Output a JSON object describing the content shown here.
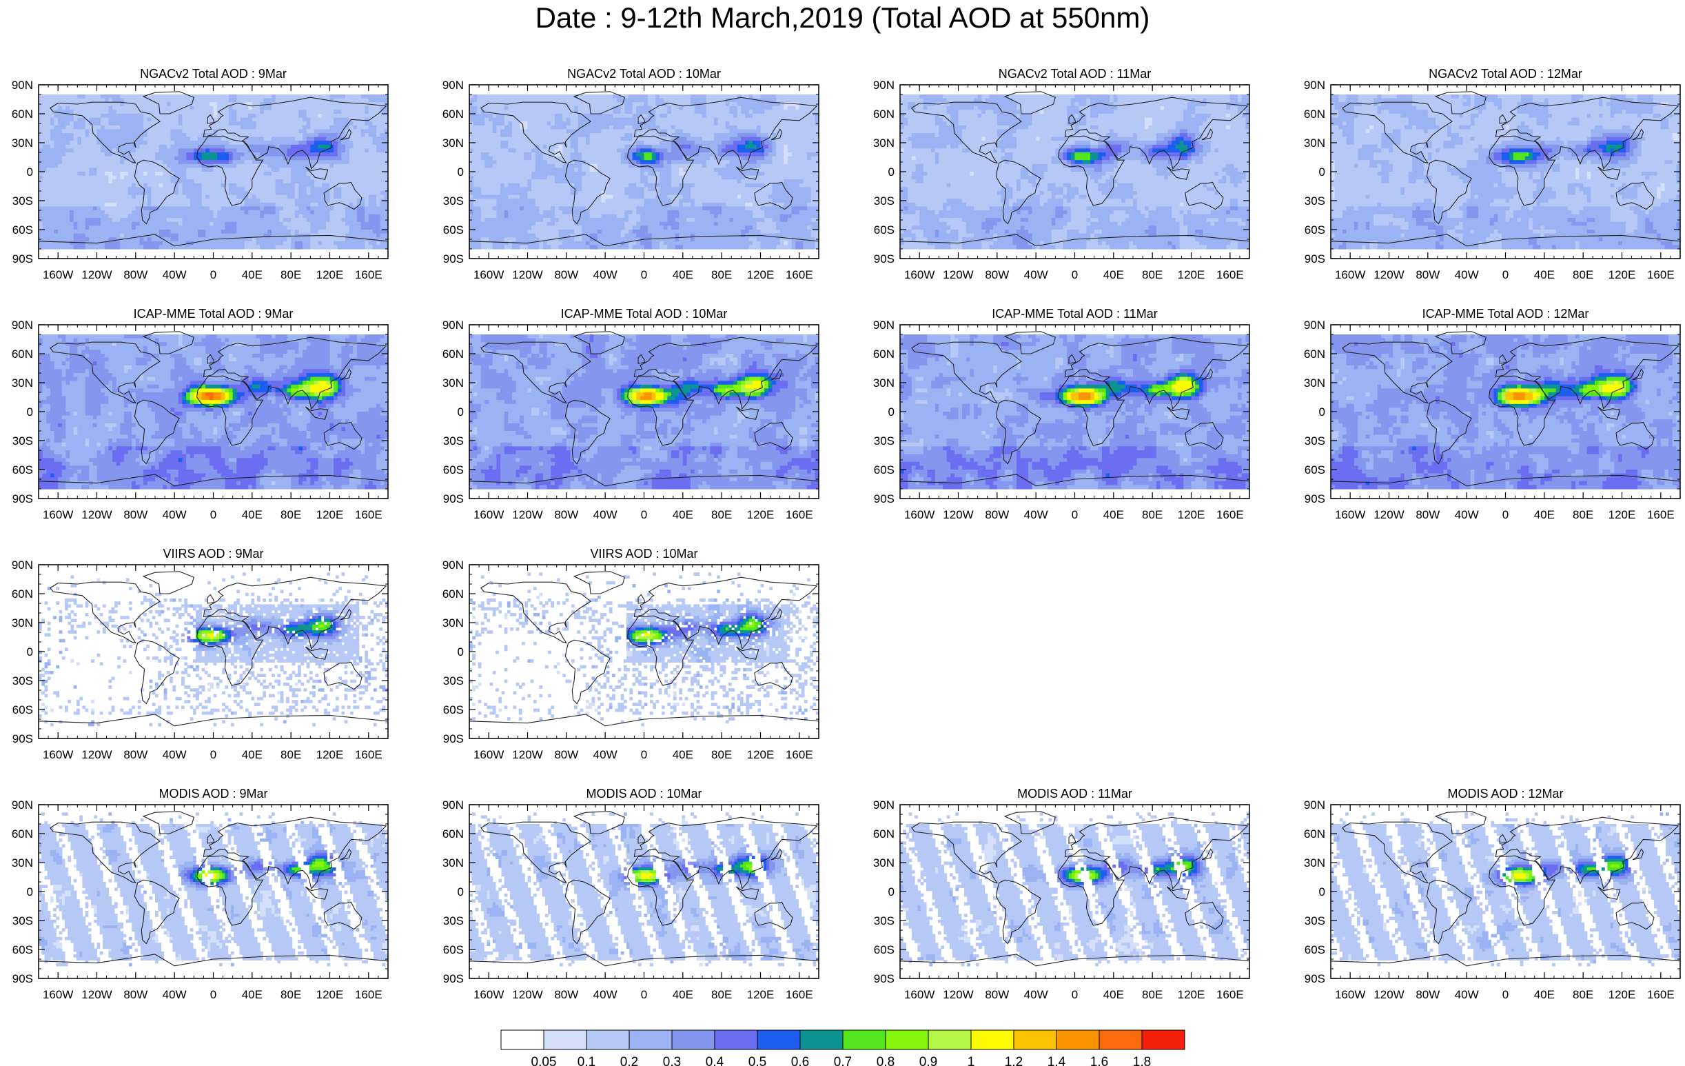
{
  "figure": {
    "title": "Date : 9-12th March,2019 (Total AOD at 550nm)"
  },
  "axes": {
    "lat_labels": [
      "90N",
      "60N",
      "30N",
      "0",
      "30S",
      "60S",
      "90S"
    ],
    "lon_labels": [
      "160W",
      "120W",
      "80W",
      "40W",
      "0",
      "40E",
      "80E",
      "120E",
      "160E"
    ],
    "lat_values": [
      90,
      60,
      30,
      0,
      -30,
      -60,
      -90
    ],
    "lon_values": [
      -160,
      -120,
      -80,
      -40,
      0,
      40,
      80,
      120,
      160
    ]
  },
  "panels": [
    {
      "title": "NGACv2 Total AOD : 9Mar",
      "model": "NGACv2",
      "day": 9,
      "row": 0,
      "col": 0
    },
    {
      "title": "NGACv2 Total AOD : 10Mar",
      "model": "NGACv2",
      "day": 10,
      "row": 0,
      "col": 1
    },
    {
      "title": "NGACv2 Total AOD : 11Mar",
      "model": "NGACv2",
      "day": 11,
      "row": 0,
      "col": 2
    },
    {
      "title": "NGACv2 Total AOD : 12Mar",
      "model": "NGACv2",
      "day": 12,
      "row": 0,
      "col": 3
    },
    {
      "title": "ICAP-MME Total AOD : 9Mar",
      "model": "ICAP-MME",
      "day": 9,
      "row": 1,
      "col": 0
    },
    {
      "title": "ICAP-MME Total AOD : 10Mar",
      "model": "ICAP-MME",
      "day": 10,
      "row": 1,
      "col": 1
    },
    {
      "title": "ICAP-MME Total AOD : 11Mar",
      "model": "ICAP-MME",
      "day": 11,
      "row": 1,
      "col": 2
    },
    {
      "title": "ICAP-MME Total AOD : 12Mar",
      "model": "ICAP-MME",
      "day": 12,
      "row": 1,
      "col": 3
    },
    {
      "title": "VIIRS AOD : 9Mar",
      "model": "VIIRS",
      "day": 9,
      "row": 2,
      "col": 0
    },
    {
      "title": "VIIRS AOD : 10Mar",
      "model": "VIIRS",
      "day": 10,
      "row": 2,
      "col": 1
    },
    {
      "title": "MODIS AOD : 9Mar",
      "model": "MODIS",
      "day": 9,
      "row": 3,
      "col": 0
    },
    {
      "title": "MODIS AOD : 10Mar",
      "model": "MODIS",
      "day": 10,
      "row": 3,
      "col": 1
    },
    {
      "title": "MODIS AOD : 11Mar",
      "model": "MODIS",
      "day": 11,
      "row": 3,
      "col": 2
    },
    {
      "title": "MODIS AOD : 12Mar",
      "model": "MODIS",
      "day": 12,
      "row": 3,
      "col": 3
    }
  ],
  "colorbar": {
    "labels": [
      "0.05",
      "0.1",
      "0.2",
      "0.3",
      "0.4",
      "0.5",
      "0.6",
      "0.7",
      "0.8",
      "0.9",
      "1",
      "1.2",
      "1.4",
      "1.6",
      "1.8"
    ],
    "colors": [
      "#ffffff",
      "#d4dffa",
      "#b6c8f5",
      "#9bb3f2",
      "#8496ee",
      "#6b6ef0",
      "#1c5ef0",
      "#0c9494",
      "#53e61e",
      "#86f50c",
      "#b5f545",
      "#fefa00",
      "#fcc400",
      "#fc9400",
      "#fa6a0a",
      "#f51f0c"
    ]
  }
}
